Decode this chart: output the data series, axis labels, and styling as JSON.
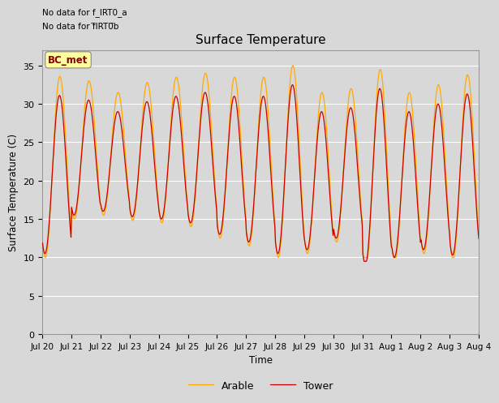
{
  "title": "Surface Temperature",
  "ylabel": "Surface Temperature (C)",
  "xlabel": "Time",
  "ylim": [
    0,
    37
  ],
  "yticks": [
    0,
    5,
    10,
    15,
    20,
    25,
    30,
    35
  ],
  "fig_bg_color": "#d8d8d8",
  "plot_bg_color": "#d8d8d8",
  "tower_color": "#cc0000",
  "arable_color": "#ffaa00",
  "tower_label": "Tower",
  "arable_label": "Arable",
  "annotation1": "No data for f_IRT0_a",
  "annotation2": "No data for f̅IRT0̅b",
  "bc_met_label": "BC_met",
  "x_tick_labels": [
    "Jul 20",
    "Jul 21",
    "Jul 22",
    "Jul 23",
    "Jul 24",
    "Jul 25",
    "Jul 26",
    "Jul 27",
    "Jul 28",
    "Jul 29",
    "Jul 30",
    "Jul 31",
    "Aug 1",
    "Aug 2",
    "Aug 3",
    "Aug 4"
  ],
  "n_days": 15,
  "points_per_day": 48,
  "grid_color": "#ffffff",
  "grid_lw": 0.8
}
